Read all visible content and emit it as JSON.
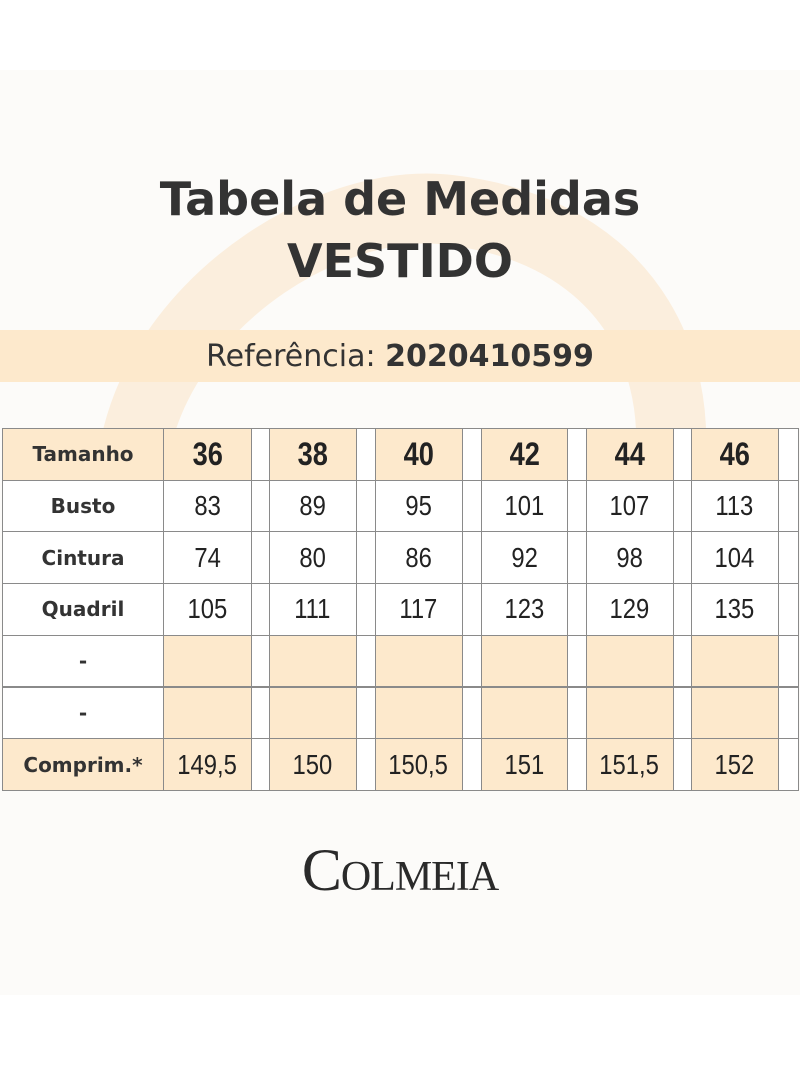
{
  "header": {
    "title": "Tabela de Medidas",
    "subtitle": "VESTIDO",
    "reference_label": "Referência:",
    "reference_number": "2020410599"
  },
  "table": {
    "header": {
      "label": "Tamanho",
      "values": [
        "36",
        "38",
        "40",
        "42",
        "44",
        "46"
      ]
    },
    "rows": [
      {
        "label": "Busto",
        "values": [
          "83",
          "89",
          "95",
          "101",
          "107",
          "113"
        ]
      },
      {
        "label": "Cintura",
        "values": [
          "74",
          "80",
          "86",
          "92",
          "98",
          "104"
        ]
      },
      {
        "label": "Quadril",
        "values": [
          "105",
          "111",
          "117",
          "123",
          "129",
          "135"
        ]
      },
      {
        "label": "-"
      },
      {
        "label": "-"
      },
      {
        "label": "Comprim.*",
        "values": [
          "149,5",
          "150",
          "150,5",
          "151",
          "151,5",
          "152"
        ]
      }
    ]
  },
  "footer": {
    "brand": "Colmeia"
  }
}
